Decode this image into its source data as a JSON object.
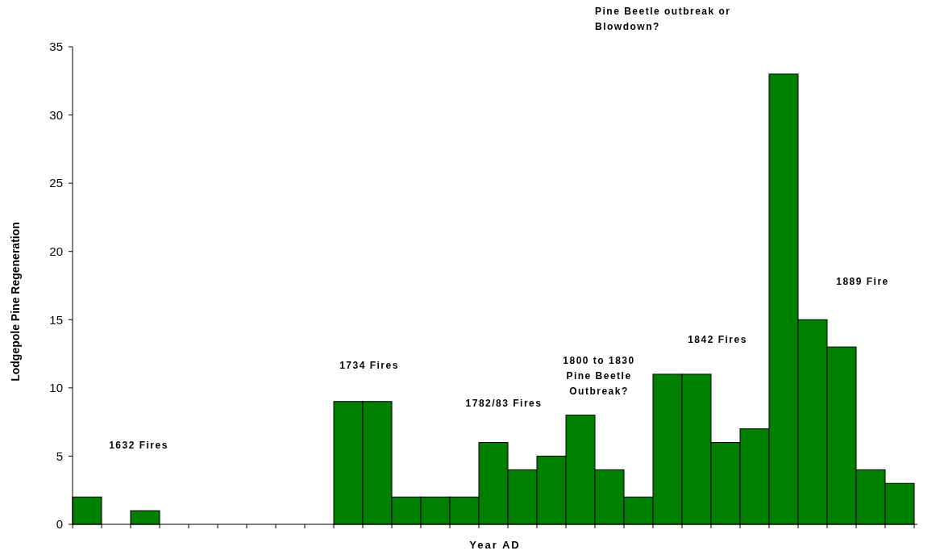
{
  "chart_data": {
    "type": "bar",
    "xlabel": "Year AD",
    "ylabel": "Lodgepole Pine Regeneration",
    "categories": [
      null,
      null,
      null,
      null,
      null,
      null,
      null,
      null,
      null,
      null,
      null,
      null,
      null,
      null,
      null,
      null,
      null,
      null,
      null,
      null,
      null,
      null,
      null,
      null,
      null,
      null,
      null,
      null,
      null
    ],
    "values": [
      2,
      0,
      1,
      0,
      0,
      0,
      0,
      0,
      0,
      9,
      9,
      2,
      2,
      2,
      6,
      4,
      5,
      8,
      4,
      2,
      11,
      11,
      6,
      7,
      33,
      15,
      13,
      4,
      3
    ],
    "color": "#008000",
    "ylim": [
      0,
      35
    ],
    "yticks": [
      0,
      5,
      10,
      15,
      20,
      25,
      30,
      35
    ],
    "grid": false,
    "annotations": [
      "1632 Fires",
      "1734 Fires",
      "1782/83 Fires",
      "1800 to 1830\nPine Beetle\nOutbreak?",
      "1842 Fires",
      "Pine Beetle outbreak or\nBlowdown?",
      "1889 Fire"
    ]
  }
}
